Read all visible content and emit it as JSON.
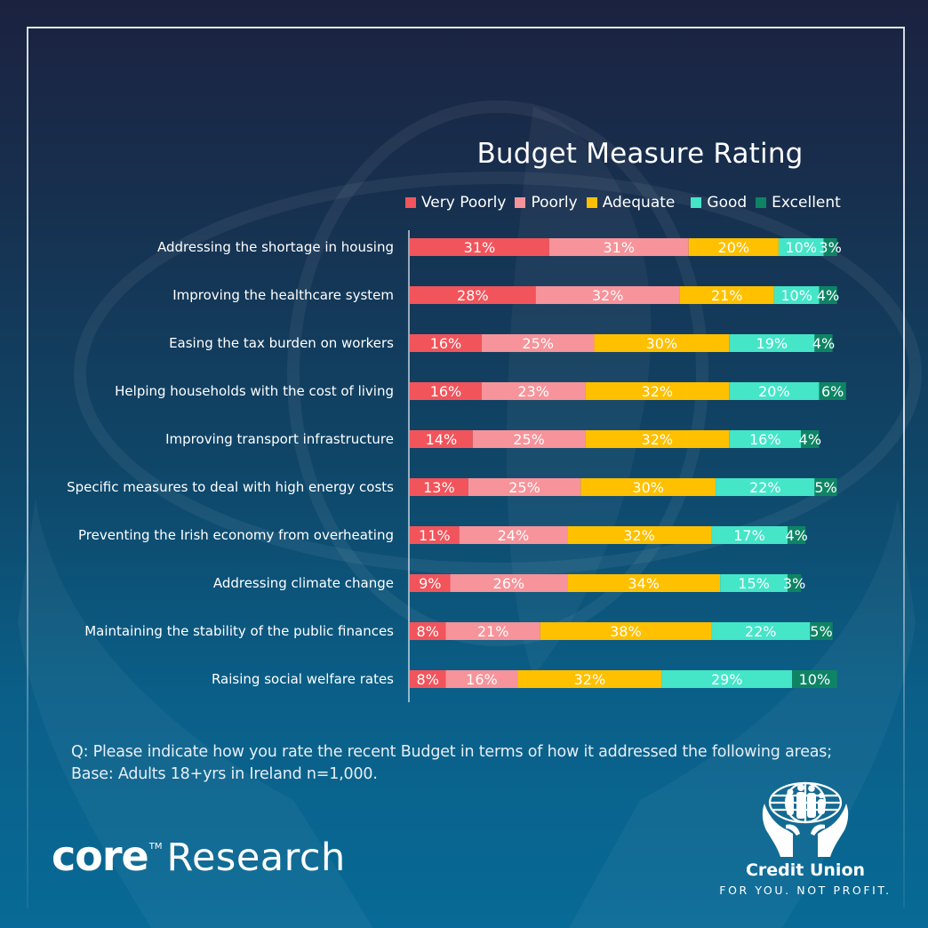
{
  "branding": {
    "core_word": "core",
    "core_tm": "TM",
    "core_research": "Research",
    "credit_union_name": "Credit Union",
    "credit_union_tagline": "FOR YOU. NOT PROFIT."
  },
  "footnote": {
    "line1": "Q: Please indicate how you rate the recent Budget in terms of how it addressed the following areas;",
    "line2": "Base: Adults 18+yrs in Ireland n=1,000."
  },
  "colors": {
    "very_poorly": "#f2545b",
    "poorly": "#f7939a",
    "adequate": "#ffc000",
    "good": "#45e5c8",
    "excellent": "#0f8465",
    "axis": "#dfe8f2"
  },
  "chart_data": {
    "type": "bar",
    "orientation": "horizontal",
    "stacked": true,
    "title": "Budget Measure Rating",
    "xlabel": "",
    "ylabel": "",
    "xlim": [
      0,
      100
    ],
    "unit": "%",
    "grid": false,
    "legend_position": "top",
    "categories": [
      "Addressing the shortage in housing",
      "Improving the healthcare system",
      "Easing the tax burden on workers",
      "Helping households with the cost of living",
      "Improving transport infrastructure",
      "Specific measures to deal with high energy costs",
      "Preventing the Irish economy from overheating",
      "Addressing climate change",
      "Maintaining the stability of the public finances",
      "Raising social welfare rates"
    ],
    "series": [
      {
        "name": "Very Poorly",
        "color_key": "very_poorly",
        "values": [
          31,
          28,
          16,
          16,
          14,
          13,
          11,
          9,
          8,
          8
        ]
      },
      {
        "name": "Poorly",
        "color_key": "poorly",
        "values": [
          31,
          32,
          25,
          23,
          25,
          25,
          24,
          26,
          21,
          16
        ]
      },
      {
        "name": "Adequate",
        "color_key": "adequate",
        "values": [
          20,
          21,
          30,
          32,
          32,
          30,
          32,
          34,
          38,
          32
        ]
      },
      {
        "name": "Good",
        "color_key": "good",
        "values": [
          10,
          10,
          19,
          20,
          16,
          22,
          17,
          15,
          22,
          29
        ]
      },
      {
        "name": "Excellent",
        "color_key": "excellent",
        "values": [
          3,
          4,
          4,
          6,
          4,
          5,
          4,
          3,
          5,
          10
        ]
      }
    ]
  }
}
